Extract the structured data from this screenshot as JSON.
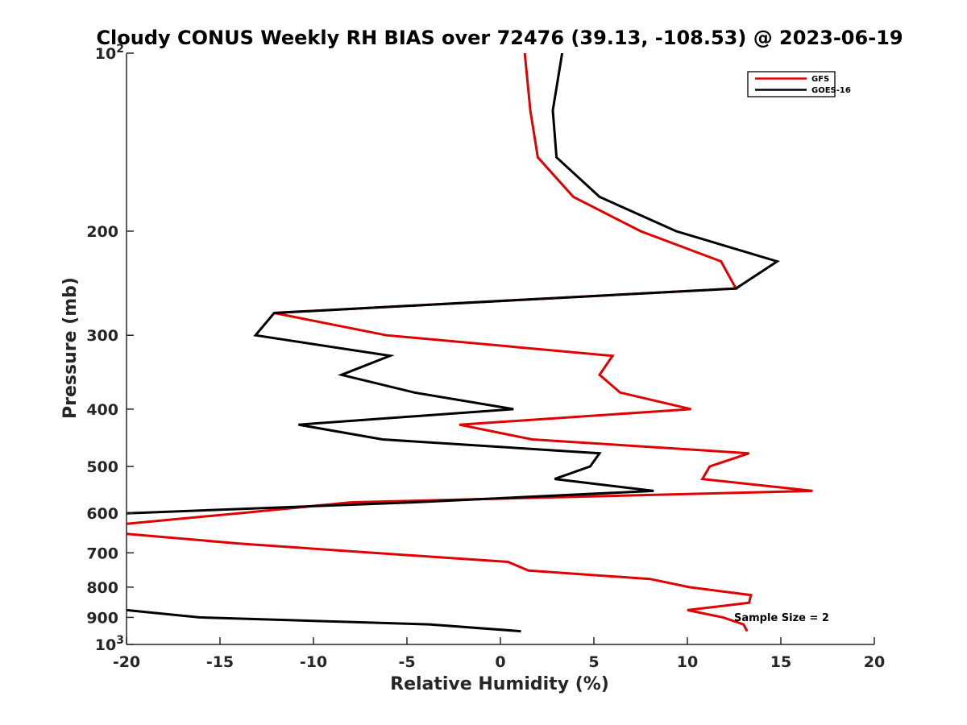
{
  "chart_data": {
    "type": "line",
    "title": "Cloudy CONUS Weekly RH BIAS over 72476 (39.13, -108.53) @ 2023-06-19",
    "xlabel": "Relative Humidity (%)",
    "ylabel": "Pressure (mb)",
    "xlim": [
      -20,
      20
    ],
    "ylim": [
      100,
      1000
    ],
    "y_scale": "log",
    "y_reversed": true,
    "x_ticks": [
      "-20",
      "-15",
      "-10",
      "-5",
      "0",
      "5",
      "10",
      "15",
      "20"
    ],
    "y_ticks": [
      {
        "value": 100,
        "base": "10",
        "exp": "2"
      },
      {
        "value": 200,
        "label": "200"
      },
      {
        "value": 300,
        "label": "300"
      },
      {
        "value": 400,
        "label": "400"
      },
      {
        "value": 500,
        "label": "500"
      },
      {
        "value": 600,
        "label": "600"
      },
      {
        "value": 700,
        "label": "700"
      },
      {
        "value": 800,
        "label": "800"
      },
      {
        "value": 900,
        "label": "900"
      },
      {
        "value": 1000,
        "base": "10",
        "exp": "3"
      }
    ],
    "grid": false,
    "legend_position": "top-right",
    "series": [
      {
        "name": "GFS",
        "color": "#e00000",
        "segments": [
          [
            [
              1.3,
              100
            ],
            [
              1.6,
              125
            ],
            [
              2.0,
              150
            ],
            [
              3.9,
              175
            ],
            [
              7.5,
              200
            ],
            [
              11.8,
              225
            ],
            [
              12.6,
              250
            ],
            [
              -12.1,
              275
            ],
            [
              -6.1,
              300
            ],
            [
              6.0,
              325
            ],
            [
              5.3,
              350
            ],
            [
              6.4,
              375
            ],
            [
              10.2,
              400
            ],
            [
              -2.2,
              425
            ],
            [
              1.7,
              450
            ],
            [
              13.3,
              475
            ],
            [
              11.2,
              500
            ],
            [
              10.8,
              525
            ],
            [
              16.7,
              550
            ],
            [
              -8.0,
              575
            ],
            [
              -14.0,
              600
            ],
            [
              -20.0,
              625
            ]
          ],
          [
            [
              -20.0,
              650
            ],
            [
              -14.0,
              675
            ],
            [
              -6.8,
              700
            ],
            [
              0.4,
              725
            ],
            [
              1.5,
              750
            ],
            [
              8.0,
              775
            ],
            [
              10.1,
              800
            ],
            [
              13.4,
              825
            ],
            [
              13.3,
              850
            ],
            [
              10.0,
              875
            ],
            [
              11.9,
              900
            ],
            [
              13.0,
              925
            ],
            [
              13.2,
              950
            ]
          ]
        ]
      },
      {
        "name": "GOES-16",
        "color": "#000000",
        "segments": [
          [
            [
              3.3,
              100
            ],
            [
              2.8,
              125
            ],
            [
              3.0,
              150
            ],
            [
              5.3,
              175
            ],
            [
              9.4,
              200
            ],
            [
              14.8,
              225
            ],
            [
              12.6,
              250
            ],
            [
              -12.1,
              275
            ],
            [
              -13.1,
              300
            ],
            [
              -5.9,
              325
            ],
            [
              -8.5,
              350
            ],
            [
              -4.6,
              375
            ],
            [
              0.7,
              400
            ],
            [
              -10.8,
              425
            ],
            [
              -6.3,
              450
            ],
            [
              5.3,
              475
            ],
            [
              4.8,
              500
            ],
            [
              2.9,
              525
            ],
            [
              8.2,
              550
            ],
            [
              -4.7,
              575
            ],
            [
              -20.0,
              600
            ]
          ],
          [
            [
              -20.0,
              875
            ],
            [
              -16.1,
              900
            ],
            [
              -3.8,
              925
            ],
            [
              1.1,
              950
            ]
          ]
        ]
      }
    ],
    "annotation": "Sample Size = 2"
  }
}
